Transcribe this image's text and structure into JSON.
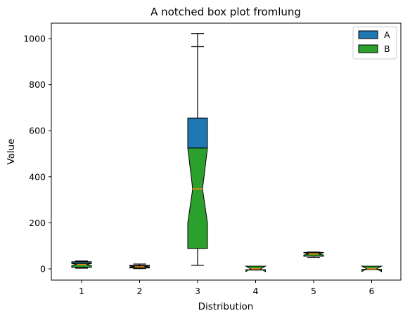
{
  "chart_data": {
    "type": "boxplot",
    "title": "A notched box plot fromlung",
    "xlabel": "Distribution",
    "ylabel": "Value",
    "categories": [
      "1",
      "2",
      "3",
      "4",
      "5",
      "6"
    ],
    "yticks": [
      0,
      200,
      400,
      600,
      800,
      1000
    ],
    "ylim": [
      -50,
      1075
    ],
    "legend": {
      "placement": "top-right",
      "entries": [
        {
          "name": "A",
          "color": "#1f77b4"
        },
        {
          "name": "B",
          "color": "#2ca02c"
        }
      ]
    },
    "boxes": [
      {
        "category": "1",
        "whisker_low": 3,
        "q1": 6,
        "median": 19,
        "q3": 31,
        "whisker_high": 34,
        "notch_low": 14,
        "notch_high": 24
      },
      {
        "category": "2",
        "whisker_low": 1,
        "q1": 4,
        "median": 9,
        "q3": 15,
        "whisker_high": 21,
        "notch_low": 7,
        "notch_high": 12
      },
      {
        "category": "3",
        "whisker_low": 15,
        "q1": 88,
        "median": 347,
        "q3": 655,
        "whisker_high": 1022,
        "notch_low": 200,
        "notch_high": 525,
        "flier": 965
      },
      {
        "category": "4",
        "whisker_low": -5,
        "q1": -4,
        "median": 0,
        "q3": 4,
        "whisker_high": 6,
        "notch_low": -12,
        "notch_high": 12
      },
      {
        "category": "5",
        "whisker_low": 50,
        "q1": 55,
        "median": 65,
        "q3": 72,
        "whisker_high": 73,
        "notch_low": 60,
        "notch_high": 70
      },
      {
        "category": "6",
        "whisker_low": -3,
        "q1": -2,
        "median": 0,
        "q3": 2,
        "whisker_high": 3,
        "notch_low": -12,
        "notch_high": 12
      }
    ],
    "colors": {
      "box_upper": "#1f77b4",
      "box_lower": "#2ca02c",
      "median": "#ff7f0e",
      "edge": "#000000"
    }
  }
}
